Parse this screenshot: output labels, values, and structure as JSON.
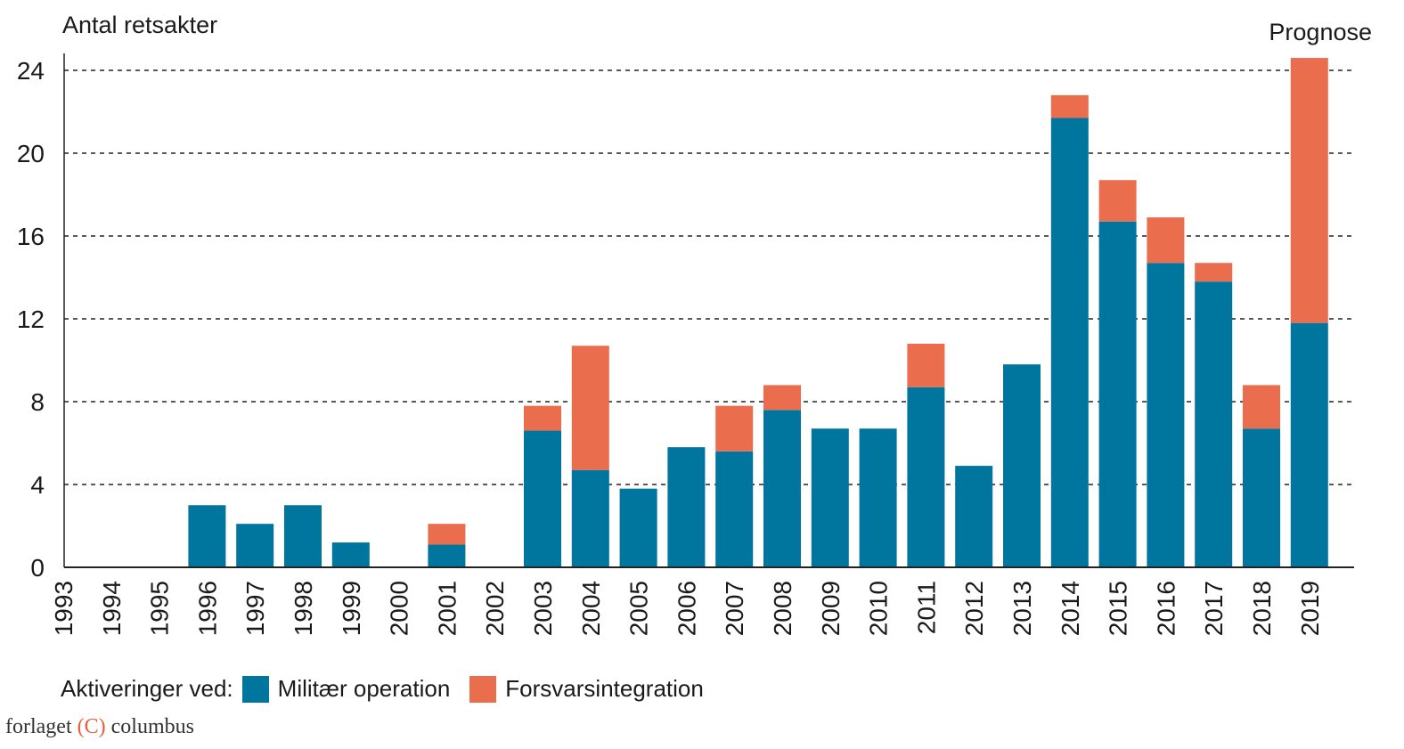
{
  "chart_data": {
    "type": "bar",
    "stacked": true,
    "ylabel": "Antal retsakter",
    "annotation": "Prognose",
    "ylim": [
      0,
      24
    ],
    "yticks": [
      0,
      4,
      8,
      12,
      16,
      20,
      24
    ],
    "grid": "horizontal dashed",
    "categories": [
      "1993",
      "1994",
      "1995",
      "1996",
      "1997",
      "1998",
      "1999",
      "2000",
      "2001",
      "2002",
      "2003",
      "2004",
      "2005",
      "2006",
      "2007",
      "2008",
      "2009",
      "2010",
      "2011",
      "2012",
      "2013",
      "2014",
      "2015",
      "2016",
      "2017",
      "2018",
      "2019"
    ],
    "series": [
      {
        "name": "Militær operation",
        "color": "#00769f",
        "values": [
          0,
          0,
          0,
          3,
          2.1,
          3,
          1.2,
          0,
          1.1,
          0,
          6.6,
          4.7,
          3.8,
          5.8,
          5.6,
          7.6,
          6.7,
          6.7,
          8.7,
          4.9,
          9.8,
          21.7,
          16.7,
          14.7,
          13.8,
          6.7,
          11.8
        ]
      },
      {
        "name": "Forsvarsintegration",
        "color": "#ea6e4e",
        "values": [
          0,
          0,
          0,
          0,
          0,
          0,
          0,
          0,
          1.0,
          0,
          1.2,
          6.0,
          0,
          0,
          2.2,
          1.2,
          0,
          0,
          2.1,
          0,
          0,
          1.1,
          2.0,
          2.2,
          0.9,
          2.1,
          12.8
        ]
      }
    ],
    "legend_title": "Aktiveringer ved:",
    "legend_position": "bottom-left"
  },
  "footer": {
    "brand_left": "forlaget",
    "brand_mark": "C",
    "brand_right": "columbus"
  }
}
